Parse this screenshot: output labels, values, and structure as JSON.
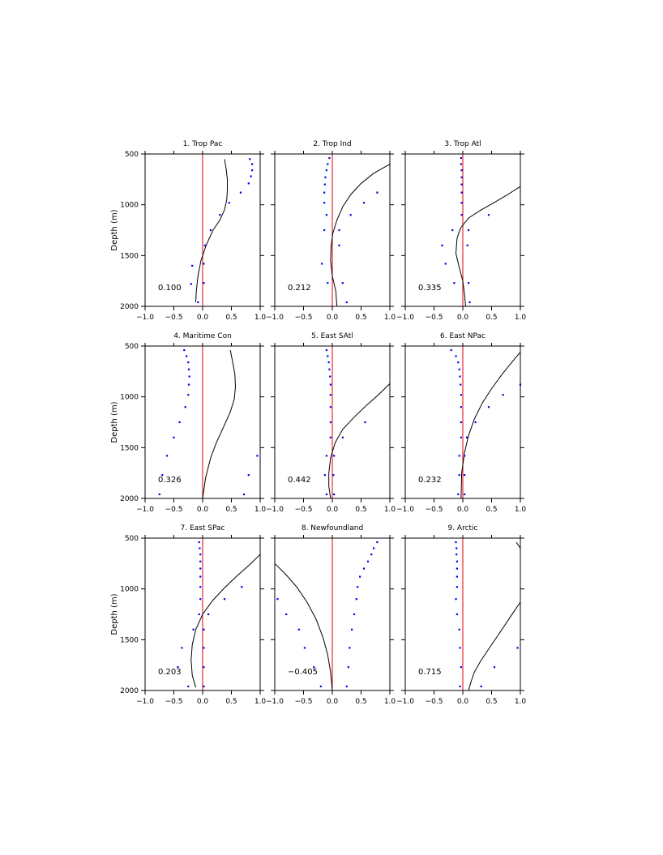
{
  "figure": {
    "ylabel": "Depth (m)"
  },
  "chart_data": [
    {
      "type": "line",
      "title": "1. Trop Pac",
      "annotation": "0.100",
      "xlim": [
        -1.0,
        1.0
      ],
      "ylim": [
        2000,
        500
      ],
      "y_inverted": true,
      "xticks": [
        "−1.0",
        "−0.5",
        "0.0",
        "0.5",
        "1.0"
      ],
      "yticks": [
        "500",
        "1000",
        "1500",
        "2000"
      ],
      "zero_line_color": "#e00000",
      "line_color": "#000000",
      "dot_color": "#0000ee",
      "line": {
        "x": [
          0.38,
          0.41,
          0.43,
          0.43,
          0.42,
          0.38,
          0.3,
          0.18,
          0.06,
          -0.03,
          -0.08,
          -0.11,
          -0.12
        ],
        "y": [
          550,
          650,
          750,
          850,
          950,
          1050,
          1150,
          1250,
          1400,
          1550,
          1700,
          1850,
          1960
        ]
      },
      "points": {
        "x": [
          0.82,
          0.86,
          0.86,
          0.84,
          0.8,
          0.66,
          0.46,
          0.3,
          0.14,
          0.04,
          0.02,
          0.02,
          -0.08,
          -0.18,
          -0.2
        ],
        "y": [
          550,
          600,
          660,
          720,
          790,
          880,
          980,
          1100,
          1250,
          1400,
          1580,
          1770,
          1960,
          1600,
          1780
        ]
      }
    },
    {
      "type": "line",
      "title": "2. Trop Ind",
      "annotation": "0.212",
      "xlim": [
        -1.0,
        1.0
      ],
      "ylim": [
        2000,
        500
      ],
      "y_inverted": true,
      "xticks": [
        "−1.0",
        "−0.5",
        "0.0",
        "0.5",
        "1.0"
      ],
      "yticks": [
        "500",
        "1000",
        "1500",
        "2000"
      ],
      "zero_line_color": "#e00000",
      "line_color": "#000000",
      "dot_color": "#0000ee",
      "line": {
        "x": [
          1.0,
          0.72,
          0.5,
          0.32,
          0.18,
          0.08,
          0.01,
          -0.02,
          -0.03,
          0.0,
          0.06,
          0.08
        ],
        "y": [
          600,
          690,
          790,
          900,
          1020,
          1150,
          1280,
          1400,
          1550,
          1700,
          1850,
          2000
        ]
      },
      "points": {
        "x": [
          -0.05,
          -0.08,
          -0.1,
          -0.12,
          -0.13,
          -0.14,
          -0.14,
          -0.1,
          -0.14,
          -0.18,
          -0.08,
          0.55,
          0.32,
          0.12,
          0.12,
          0.18,
          0.25,
          0.78
        ],
        "y": [
          540,
          600,
          660,
          730,
          800,
          880,
          980,
          1100,
          1250,
          1580,
          1770,
          980,
          1100,
          1250,
          1400,
          1770,
          1960,
          880
        ]
      }
    },
    {
      "type": "line",
      "title": "3. Trop Atl",
      "annotation": "0.335",
      "xlim": [
        -1.0,
        1.0
      ],
      "ylim": [
        2000,
        500
      ],
      "y_inverted": true,
      "xticks": [
        "−1.0",
        "−0.5",
        "0.0",
        "0.5",
        "1.0"
      ],
      "yticks": [
        "500",
        "1000",
        "1500",
        "2000"
      ],
      "zero_line_color": "#e00000",
      "line_color": "#000000",
      "dot_color": "#0000ee",
      "line": {
        "x": [
          1.0,
          0.78,
          0.54,
          0.32,
          0.1,
          -0.04,
          -0.1,
          -0.12,
          -0.06,
          0.0,
          0.03,
          0.05
        ],
        "y": [
          820,
          900,
          980,
          1050,
          1130,
          1230,
          1330,
          1480,
          1620,
          1750,
          1880,
          2000
        ]
      },
      "points": {
        "x": [
          -0.03,
          -0.03,
          -0.02,
          -0.02,
          -0.02,
          -0.02,
          -0.02,
          -0.02,
          -0.18,
          -0.36,
          -0.3,
          -0.15,
          0.45,
          0.1,
          0.08,
          0.1,
          0.12
        ],
        "y": [
          540,
          600,
          660,
          730,
          800,
          880,
          980,
          1100,
          1250,
          1400,
          1580,
          1770,
          1100,
          1250,
          1400,
          1770,
          1960
        ]
      }
    },
    {
      "type": "line",
      "title": "4. Maritime Con",
      "annotation": "0.326",
      "xlim": [
        -1.0,
        1.0
      ],
      "ylim": [
        2000,
        500
      ],
      "y_inverted": true,
      "xticks": [
        "−1.0",
        "−0.5",
        "0.0",
        "0.5",
        "1.0"
      ],
      "yticks": [
        "500",
        "1000",
        "1500",
        "2000"
      ],
      "zero_line_color": "#e00000",
      "line_color": "#000000",
      "dot_color": "#0000ee",
      "line": {
        "x": [
          0.48,
          0.52,
          0.56,
          0.57,
          0.55,
          0.48,
          0.36,
          0.24,
          0.14,
          0.05,
          0.0
        ],
        "y": [
          540,
          650,
          780,
          900,
          1020,
          1150,
          1300,
          1450,
          1600,
          1800,
          2000
        ]
      },
      "points": {
        "x": [
          -0.32,
          -0.28,
          -0.25,
          -0.24,
          -0.23,
          -0.24,
          -0.25,
          -0.3,
          -0.4,
          -0.5,
          -0.62,
          -0.7,
          -0.75,
          0.95,
          0.8,
          0.72
        ],
        "y": [
          540,
          600,
          660,
          730,
          800,
          880,
          980,
          1100,
          1250,
          1400,
          1580,
          1770,
          1960,
          1580,
          1770,
          1960
        ]
      }
    },
    {
      "type": "line",
      "title": "5. East SAtl",
      "annotation": "0.442",
      "xlim": [
        -1.0,
        1.0
      ],
      "ylim": [
        2000,
        500
      ],
      "y_inverted": true,
      "xticks": [
        "−1.0",
        "−0.5",
        "0.0",
        "0.5",
        "1.0"
      ],
      "yticks": [
        "500",
        "1000",
        "1500",
        "2000"
      ],
      "zero_line_color": "#e00000",
      "line_color": "#000000",
      "dot_color": "#0000ee",
      "line": {
        "x": [
          1.0,
          0.8,
          0.6,
          0.38,
          0.18,
          0.05,
          -0.03,
          -0.06,
          -0.06,
          -0.03
        ],
        "y": [
          870,
          980,
          1080,
          1200,
          1320,
          1450,
          1600,
          1750,
          1880,
          2000
        ]
      },
      "points": {
        "x": [
          -0.1,
          -0.08,
          -0.06,
          -0.05,
          -0.04,
          -0.03,
          -0.03,
          -0.03,
          -0.03,
          -0.03,
          -0.1,
          -0.13,
          -0.1,
          0.57,
          0.18,
          0.03,
          0.02,
          0.03
        ],
        "y": [
          540,
          600,
          660,
          730,
          800,
          880,
          980,
          1100,
          1250,
          1400,
          1580,
          1770,
          1960,
          1250,
          1400,
          1580,
          1770,
          1960
        ]
      }
    },
    {
      "type": "line",
      "title": "6. East NPac",
      "annotation": "0.232",
      "xlim": [
        -1.0,
        1.0
      ],
      "ylim": [
        2000,
        500
      ],
      "y_inverted": true,
      "xticks": [
        "−1.0",
        "−0.5",
        "0.0",
        "0.5",
        "1.0"
      ],
      "yticks": [
        "500",
        "1000",
        "1500",
        "2000"
      ],
      "zero_line_color": "#e00000",
      "line_color": "#000000",
      "dot_color": "#0000ee",
      "line": {
        "x": [
          1.0,
          0.85,
          0.68,
          0.5,
          0.34,
          0.2,
          0.1,
          0.03,
          -0.02,
          -0.03
        ],
        "y": [
          560,
          660,
          780,
          920,
          1060,
          1220,
          1380,
          1550,
          1750,
          2000
        ]
      },
      "points": {
        "x": [
          -0.2,
          -0.12,
          -0.08,
          -0.06,
          -0.05,
          -0.04,
          -0.03,
          -0.03,
          -0.03,
          -0.03,
          -0.06,
          -0.06,
          -0.08,
          1.0,
          0.7,
          0.45,
          0.22,
          0.07,
          0.03,
          0.03,
          0.03
        ],
        "y": [
          540,
          600,
          660,
          730,
          800,
          880,
          980,
          1100,
          1250,
          1400,
          1580,
          1770,
          1960,
          880,
          980,
          1100,
          1250,
          1400,
          1580,
          1770,
          1960
        ]
      }
    },
    {
      "type": "line",
      "title": "7. East SPac",
      "annotation": "0.203",
      "xlim": [
        -1.0,
        1.0
      ],
      "ylim": [
        2000,
        500
      ],
      "y_inverted": true,
      "xticks": [
        "−1.0",
        "−0.5",
        "0.0",
        "0.5",
        "1.0"
      ],
      "yticks": [
        "500",
        "1000",
        "1500",
        "2000"
      ],
      "zero_line_color": "#e00000",
      "line_color": "#000000",
      "dot_color": "#0000ee",
      "line": {
        "x": [
          1.0,
          0.82,
          0.6,
          0.38,
          0.18,
          0.0,
          -0.12,
          -0.18,
          -0.2,
          -0.18,
          -0.12
        ],
        "y": [
          660,
          760,
          870,
          990,
          1110,
          1250,
          1400,
          1550,
          1700,
          1850,
          1970
        ]
      },
      "points": {
        "x": [
          -0.06,
          -0.05,
          -0.04,
          -0.04,
          -0.04,
          -0.04,
          -0.04,
          -0.04,
          -0.06,
          -0.16,
          -0.36,
          -0.43,
          -0.25,
          0.68,
          0.38,
          0.1,
          0.02,
          0.02,
          0.02,
          0.02
        ],
        "y": [
          540,
          600,
          660,
          730,
          800,
          880,
          980,
          1100,
          1250,
          1400,
          1580,
          1770,
          1960,
          980,
          1100,
          1250,
          1400,
          1580,
          1770,
          1960
        ]
      }
    },
    {
      "type": "line",
      "title": "8. Newfoundland",
      "annotation": "−0.405",
      "xlim": [
        -1.0,
        1.0
      ],
      "ylim": [
        2000,
        500
      ],
      "y_inverted": true,
      "xticks": [
        "−1.0",
        "−0.5",
        "0.0",
        "0.5",
        "1.0"
      ],
      "yticks": [
        "500",
        "1000",
        "1500",
        "2000"
      ],
      "zero_line_color": "#e00000",
      "line_color": "#000000",
      "dot_color": "#0000ee",
      "line": {
        "x": [
          -1.0,
          -0.82,
          -0.62,
          -0.44,
          -0.28,
          -0.16,
          -0.08,
          -0.03,
          0.0
        ],
        "y": [
          750,
          850,
          980,
          1130,
          1300,
          1480,
          1650,
          1820,
          2000
        ]
      },
      "points": {
        "x": [
          0.78,
          0.72,
          0.68,
          0.62,
          0.55,
          0.48,
          0.44,
          0.42,
          0.38,
          0.34,
          0.3,
          0.28,
          0.25,
          -0.95,
          -0.8,
          -0.58,
          -0.48,
          -0.32,
          -0.2
        ],
        "y": [
          540,
          600,
          660,
          730,
          800,
          880,
          980,
          1100,
          1250,
          1400,
          1580,
          1770,
          1960,
          1100,
          1250,
          1400,
          1580,
          1770,
          1960
        ]
      }
    },
    {
      "type": "line",
      "title": "9. Arctic",
      "annotation": "0.715",
      "xlim": [
        -1.0,
        1.0
      ],
      "ylim": [
        2000,
        500
      ],
      "y_inverted": true,
      "xticks": [
        "−1.0",
        "−0.5",
        "0.0",
        "0.5",
        "1.0"
      ],
      "yticks": [
        "500",
        "1000",
        "1500",
        "2000"
      ],
      "zero_line_color": "#e00000",
      "line_color": "#000000",
      "dot_color": "#0000ee",
      "line": {
        "x": [
          1.0,
          0.82,
          0.62,
          0.44,
          0.3,
          0.2,
          0.14,
          0.1
        ],
        "y": [
          1130,
          1280,
          1450,
          1600,
          1720,
          1820,
          1920,
          2000
        ],
        "x2": [
          0.93,
          1.0
        ],
        "y2": [
          540,
          600
        ]
      },
      "points": {
        "x": [
          -0.12,
          -0.11,
          -0.11,
          -0.1,
          -0.1,
          -0.1,
          -0.1,
          -0.12,
          -0.1,
          -0.06,
          -0.05,
          -0.03,
          -0.05,
          0.95,
          0.55,
          0.32
        ],
        "y": [
          540,
          600,
          660,
          730,
          800,
          880,
          980,
          1100,
          1250,
          1400,
          1580,
          1770,
          1960,
          1580,
          1770,
          1960
        ]
      }
    }
  ]
}
